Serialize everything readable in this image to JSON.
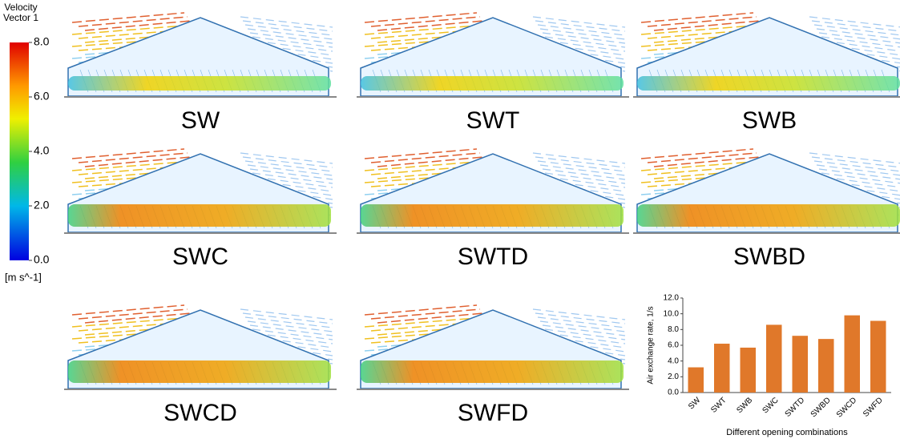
{
  "colorbar": {
    "title_lines": [
      "Velocity",
      "Vector 1"
    ],
    "unit": "[m s^-1]",
    "lim": [
      0,
      8
    ],
    "ticks": [
      {
        "value": 8,
        "label": "8.0"
      },
      {
        "value": 6,
        "label": "6.0"
      },
      {
        "value": 4,
        "label": "4.0"
      },
      {
        "value": 2,
        "label": "2.0"
      },
      {
        "value": 0,
        "label": "0.0"
      }
    ]
  },
  "panels": [
    "SW",
    "SWT",
    "SWB",
    "SWC",
    "SWTD",
    "SWBD",
    "SWCD",
    "SWFD"
  ],
  "chart_data": {
    "type": "bar",
    "categories": [
      "SW",
      "SWT",
      "SWB",
      "SWC",
      "SWTD",
      "SWBD",
      "SWCD",
      "SWFD"
    ],
    "values": [
      3.2,
      6.2,
      5.7,
      8.6,
      7.2,
      6.8,
      9.8,
      9.1
    ],
    "color": "#e0782a",
    "ylabel": "Air exchange rate, 1/s",
    "xlabel": "Different opening combinations",
    "ylim": [
      0,
      12
    ],
    "yticks": [
      {
        "value": 0,
        "label": "0.0"
      },
      {
        "value": 2,
        "label": "2.0"
      },
      {
        "value": 4,
        "label": "4.0"
      },
      {
        "value": 6,
        "label": "6.0"
      },
      {
        "value": 8,
        "label": "8.0"
      },
      {
        "value": 10,
        "label": "10.0"
      },
      {
        "value": 12,
        "label": "12.0"
      }
    ]
  }
}
